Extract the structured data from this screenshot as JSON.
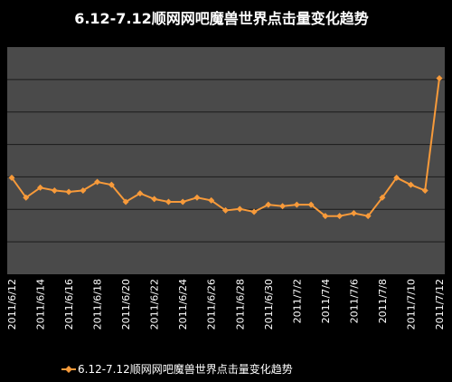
{
  "chart_data": {
    "type": "line",
    "title": "6.12-7.12顺网网吧魔兽世界点击量变化趋势",
    "xlabel": "",
    "ylabel": "",
    "grid": true,
    "legend_position": "bottom",
    "x_tick_labels": [
      "2011/6/12",
      "2011/6/14",
      "2011/6/16",
      "2011/6/18",
      "2011/6/20",
      "2011/6/22",
      "2011/6/24",
      "2011/6/26",
      "2011/6/28",
      "2011/6/30",
      "2011/7/2",
      "2011/7/4",
      "2011/7/6",
      "2011/7/8",
      "2011/7/10",
      "2011/7/12"
    ],
    "categories": [
      "2011/6/12",
      "2011/6/13",
      "2011/6/14",
      "2011/6/15",
      "2011/6/16",
      "2011/6/17",
      "2011/6/18",
      "2011/6/19",
      "2011/6/20",
      "2011/6/21",
      "2011/6/22",
      "2011/6/23",
      "2011/6/24",
      "2011/6/25",
      "2011/6/26",
      "2011/6/27",
      "2011/6/28",
      "2011/6/29",
      "2011/6/30",
      "2011/7/1",
      "2011/7/2",
      "2011/7/3",
      "2011/7/4",
      "2011/7/5",
      "2011/7/6",
      "2011/7/7",
      "2011/7/8",
      "2011/7/9",
      "2011/7/10",
      "2011/7/11",
      "2011/7/12"
    ],
    "ylim": [
      0,
      8
    ],
    "series": [
      {
        "name": "6.12-7.12顺网网吧魔兽世界点击量变化趋势",
        "color": "#F79A3A",
        "values": [
          3.4,
          2.7,
          3.05,
          2.95,
          2.9,
          2.95,
          3.25,
          3.15,
          2.55,
          2.85,
          2.65,
          2.55,
          2.55,
          2.7,
          2.6,
          2.25,
          2.3,
          2.2,
          2.45,
          2.4,
          2.45,
          2.45,
          2.05,
          2.05,
          2.15,
          2.05,
          2.7,
          3.4,
          3.15,
          2.95,
          6.9
        ]
      }
    ]
  }
}
